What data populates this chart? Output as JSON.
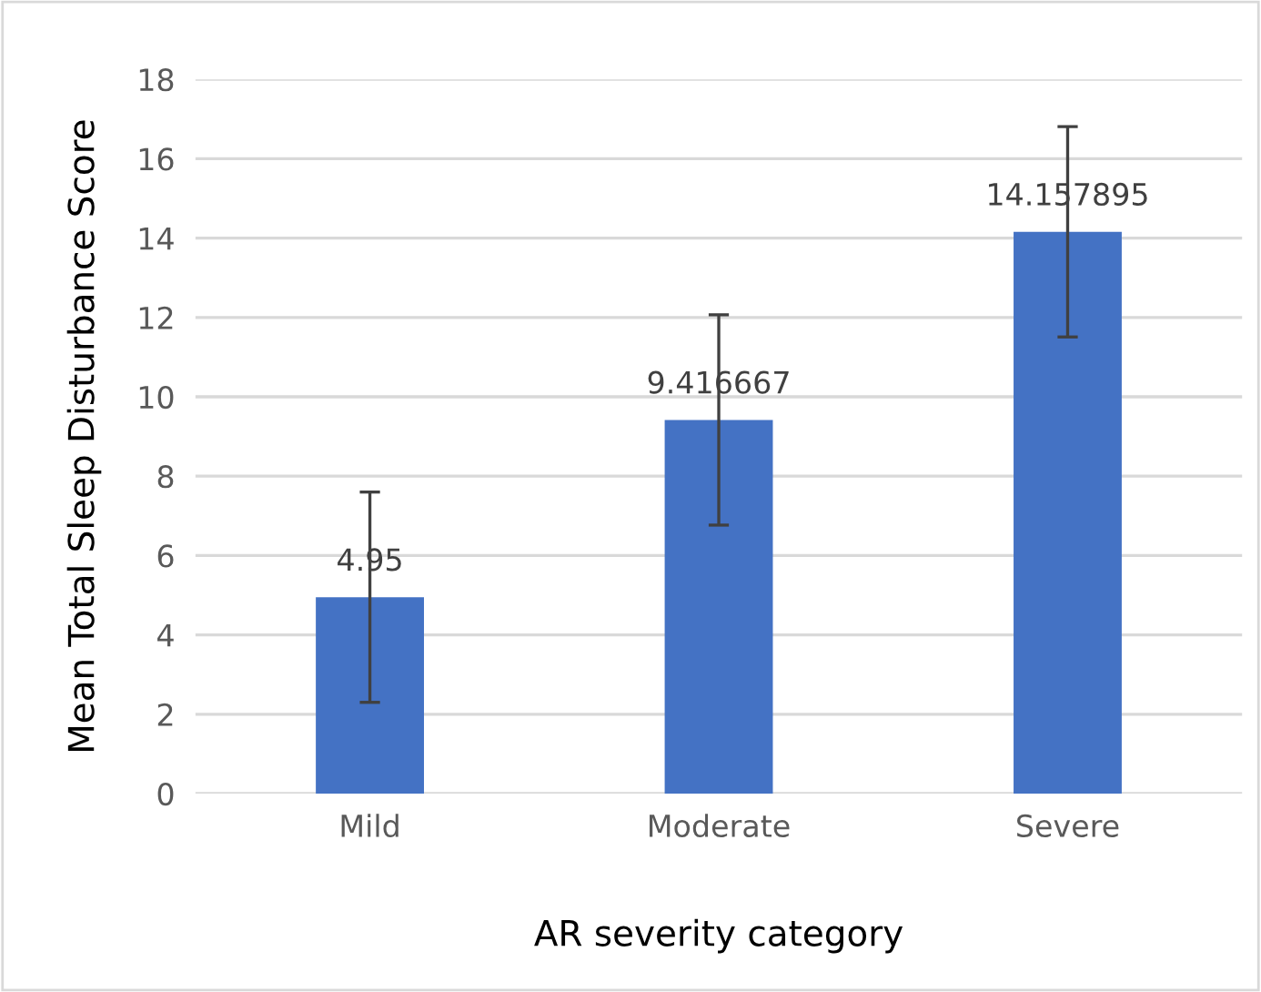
{
  "chart_data": {
    "type": "bar",
    "xlabel": "AR severity category",
    "ylabel": "Mean Total Sleep Disturbance Score",
    "categories": [
      "Mild",
      "Moderate",
      "Severe"
    ],
    "values": [
      4.95,
      9.416667,
      14.157895
    ],
    "errors": [
      2.65,
      2.65,
      2.65
    ],
    "color": "#4472c4",
    "data_labels": true,
    "ylim": [
      0,
      18
    ],
    "yticks": [
      0,
      2,
      4,
      6,
      8,
      10,
      12,
      14,
      16,
      18
    ],
    "grid": "y"
  }
}
